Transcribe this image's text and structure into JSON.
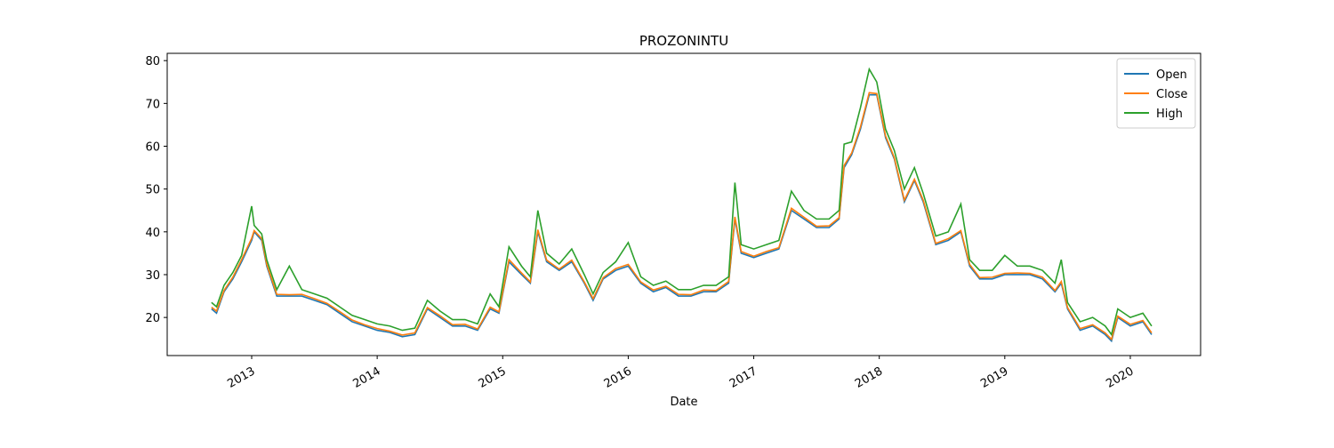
{
  "chart_data": {
    "type": "line",
    "title": "PROZONINTU",
    "xlabel": "Date",
    "x": [
      2012.68,
      2012.72,
      2012.78,
      2012.85,
      2012.92,
      2013.0,
      2013.02,
      2013.08,
      2013.12,
      2013.2,
      2013.3,
      2013.4,
      2013.5,
      2013.6,
      2013.7,
      2013.8,
      2013.9,
      2014.0,
      2014.1,
      2014.2,
      2014.3,
      2014.4,
      2014.5,
      2014.6,
      2014.7,
      2014.8,
      2014.9,
      2014.97,
      2015.05,
      2015.15,
      2015.22,
      2015.28,
      2015.35,
      2015.45,
      2015.55,
      2015.65,
      2015.72,
      2015.8,
      2015.9,
      2016.0,
      2016.1,
      2016.2,
      2016.3,
      2016.4,
      2016.5,
      2016.6,
      2016.7,
      2016.8,
      2016.85,
      2016.9,
      2017.0,
      2017.1,
      2017.2,
      2017.3,
      2017.4,
      2017.5,
      2017.6,
      2017.68,
      2017.72,
      2017.78,
      2017.85,
      2017.92,
      2017.98,
      2018.05,
      2018.12,
      2018.2,
      2018.28,
      2018.35,
      2018.45,
      2018.55,
      2018.65,
      2018.72,
      2018.8,
      2018.9,
      2019.0,
      2019.1,
      2019.2,
      2019.3,
      2019.4,
      2019.45,
      2019.5,
      2019.6,
      2019.7,
      2019.8,
      2019.85,
      2019.9,
      2020.0,
      2020.1,
      2020.17
    ],
    "series": [
      {
        "name": "Open",
        "color": "#1f77b4",
        "values": [
          22,
          21,
          26,
          29,
          33,
          38,
          40,
          38,
          32,
          25,
          25,
          25,
          24,
          23,
          21,
          19,
          18,
          17,
          16.5,
          15.5,
          16,
          22,
          20,
          18,
          18,
          17,
          22,
          21,
          33,
          30,
          28,
          40,
          33,
          31,
          33,
          28,
          24,
          29,
          31,
          32,
          28,
          26,
          27,
          25,
          25,
          26,
          26,
          28,
          43,
          35,
          34,
          35,
          36,
          45,
          43,
          41,
          41,
          43,
          55,
          58,
          64,
          72,
          72,
          62,
          57,
          47,
          52,
          47,
          37,
          38,
          40,
          32,
          29,
          29,
          30,
          30,
          30,
          29,
          26,
          28,
          22,
          17,
          18,
          16,
          14.5,
          20,
          18,
          19,
          16
        ]
      },
      {
        "name": "Close",
        "color": "#ff7f0e",
        "values": [
          22.4,
          21.5,
          26.3,
          29.4,
          33.5,
          38.5,
          40.3,
          38.4,
          32.4,
          25.4,
          25.3,
          25.4,
          24.4,
          23.3,
          21.4,
          19.4,
          18.3,
          17.4,
          16.8,
          15.9,
          16.4,
          22.3,
          20.4,
          18.3,
          18.4,
          17.3,
          22.4,
          21.3,
          33.5,
          30.4,
          28.3,
          40.5,
          33.4,
          31.3,
          33.4,
          28.3,
          24.4,
          29.3,
          31.4,
          32.4,
          28.3,
          26.4,
          27.3,
          25.4,
          25.3,
          26.4,
          26.3,
          28.4,
          43.5,
          35.4,
          34.3,
          35.4,
          36.3,
          45.5,
          43.4,
          41.3,
          41.4,
          43.3,
          55.5,
          58.4,
          64.5,
          72.5,
          72.3,
          62.4,
          57.3,
          47.4,
          52.3,
          47.4,
          37.3,
          38.4,
          40.3,
          32.4,
          29.3,
          29.4,
          30.3,
          30.4,
          30.3,
          29.4,
          26.3,
          28.4,
          22.3,
          17.4,
          18.3,
          16.4,
          14.9,
          20.3,
          18.4,
          19.3,
          16.4
        ]
      },
      {
        "name": "High",
        "color": "#2ca02c",
        "values": [
          23.5,
          22.5,
          27.5,
          30.5,
          34.5,
          46,
          41.5,
          39.5,
          33.5,
          26.5,
          32,
          26.5,
          25.5,
          24.5,
          22.5,
          20.5,
          19.5,
          18.5,
          18,
          17,
          17.5,
          24,
          21.5,
          19.5,
          19.5,
          18.5,
          25.5,
          22.5,
          36.5,
          32,
          29.5,
          45,
          35,
          32.5,
          36,
          30,
          25.5,
          30.5,
          33,
          37.5,
          29.5,
          27.5,
          28.5,
          26.5,
          26.5,
          27.5,
          27.5,
          29.5,
          51.5,
          37,
          36,
          37,
          38,
          49.5,
          45,
          43,
          43,
          45,
          60.5,
          61,
          69,
          78,
          75,
          64,
          59,
          50,
          55,
          49,
          39,
          40,
          46.5,
          33.5,
          31,
          31,
          34.5,
          32,
          32,
          31,
          28,
          33.5,
          23.5,
          19,
          20,
          18,
          16,
          22,
          20,
          21,
          18
        ]
      }
    ],
    "xlim": [
      2012.327,
      2020.56
    ],
    "xticks": [
      2013,
      2014,
      2015,
      2016,
      2017,
      2018,
      2019,
      2020
    ],
    "ylim": [
      11.1,
      81.7
    ],
    "yticks": [
      20,
      30,
      40,
      50,
      60,
      70,
      80
    ],
    "legend": "upper right",
    "grid": false
  }
}
